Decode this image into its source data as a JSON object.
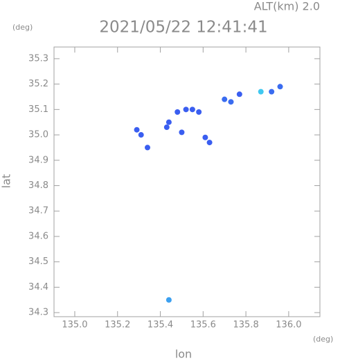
{
  "chart_data": {
    "type": "scatter",
    "title": "2021/05/22 12:41:41",
    "subtitle": "ALT(km) 2.0",
    "y_unit": "(deg)",
    "x_unit": "(deg)",
    "x_label": "lon",
    "y_label": "lat",
    "xlim": [
      134.903,
      136.146
    ],
    "ylim": [
      34.284,
      35.346
    ],
    "xticks": [
      {
        "value": 135.0,
        "label": "135.0"
      },
      135.2,
      135.4,
      135.6,
      135.8,
      {
        "value": 136.0,
        "label": "136.0"
      }
    ],
    "yticks": [
      34.3,
      34.4,
      34.5,
      34.6,
      34.7,
      34.8,
      34.9,
      {
        "value": 35.0,
        "label": "35.0"
      },
      35.1,
      35.2,
      35.3
    ],
    "x": [
      135.29,
      135.31,
      135.34,
      135.44,
      135.43,
      135.5,
      135.52,
      135.55,
      135.58,
      135.48,
      135.63,
      135.61,
      135.7,
      135.73,
      135.77,
      135.87,
      135.92,
      135.96,
      135.44
    ],
    "values": [
      35.02,
      35.0,
      34.95,
      35.05,
      35.03,
      35.01,
      35.1,
      35.1,
      35.09,
      35.09,
      34.97,
      34.99,
      35.14,
      35.13,
      35.16,
      35.17,
      35.17,
      35.19,
      34.35
    ],
    "colors": [
      "#3a5ef0",
      "#3a5ef0",
      "#3a5ef0",
      "#3a5ef0",
      "#3a5ef0",
      "#3a5ef0",
      "#3a5ef0",
      "#3a5ef0",
      "#3a5ef0",
      "#3a5ef0",
      "#3a5ef0",
      "#3a5ef0",
      "#3a6cf0",
      "#3a6cf0",
      "#3a5ef0",
      "#40c8f0",
      "#3a6cf0",
      "#3a6cf0",
      "#3ca0f0"
    ]
  }
}
